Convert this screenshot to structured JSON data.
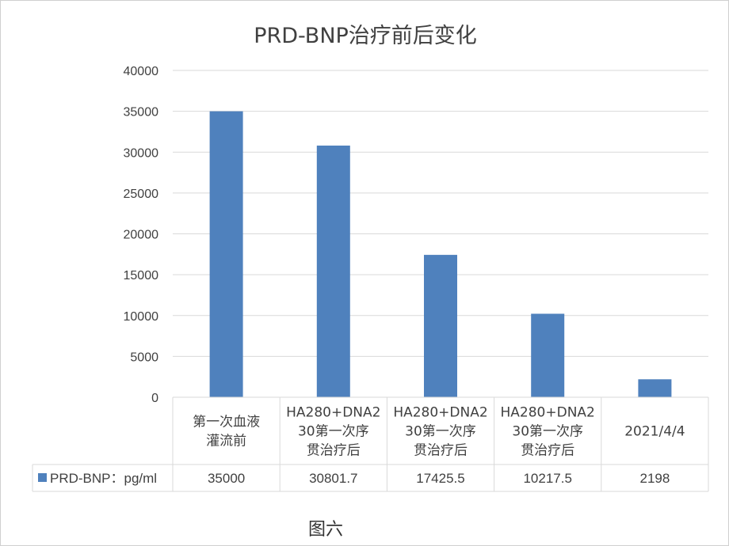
{
  "chart_data": {
    "type": "bar",
    "title": "PRD-BNP治疗前后变化",
    "categories": [
      [
        "第一次血液",
        "灌流前"
      ],
      [
        "HA280+DNA2",
        "30第一次序",
        "贯治疗后"
      ],
      [
        "HA280+DNA2",
        "30第一次序",
        "贯治疗后"
      ],
      [
        "HA280+DNA2",
        "30第一次序",
        "贯治疗后"
      ],
      [
        "2021/4/4"
      ]
    ],
    "series": [
      {
        "name": "PRD-BNP：pg/ml",
        "values": [
          35000,
          30801.7,
          17425.5,
          10217.5,
          2198
        ],
        "value_labels": [
          "35000",
          "30801.7",
          "17425.5",
          "10217.5",
          "2198"
        ],
        "color": "#4f81bd"
      }
    ],
    "yticks": [
      "0",
      "5000",
      "10000",
      "15000",
      "20000",
      "25000",
      "30000",
      "35000",
      "40000"
    ],
    "ylim": [
      0,
      40000
    ],
    "grid": true,
    "legend": "data-table"
  },
  "caption": "图六"
}
